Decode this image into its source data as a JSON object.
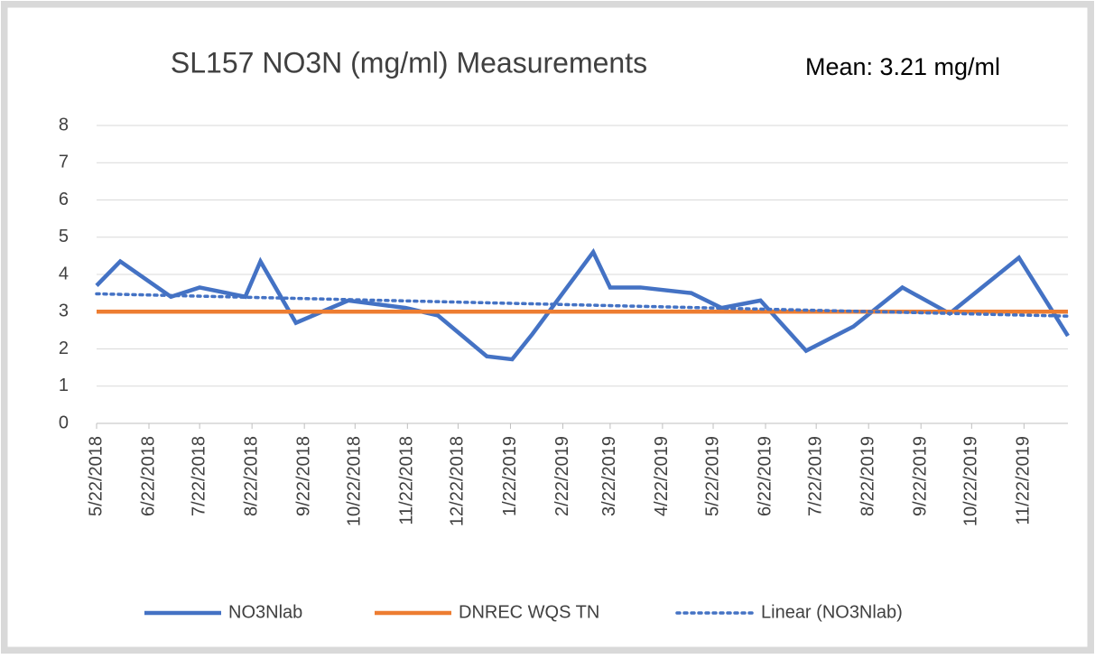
{
  "chart_data": {
    "type": "line",
    "title": "SL157 NO3N (mg/ml) Measurements",
    "annotation": "Mean: 3.21 mg/ml",
    "xlim": [
      "2018-05-22",
      "2019-12-18"
    ],
    "xticks": [
      {
        "value": "2018-05-22",
        "label": "5/22/2018"
      },
      {
        "value": "2018-06-22",
        "label": "6/22/2018"
      },
      {
        "value": "2018-07-22",
        "label": "7/22/2018"
      },
      {
        "value": "2018-08-22",
        "label": "8/22/2018"
      },
      {
        "value": "2018-09-22",
        "label": "9/22/2018"
      },
      {
        "value": "2018-10-22",
        "label": "10/22/2018"
      },
      {
        "value": "2018-11-22",
        "label": "11/22/2018"
      },
      {
        "value": "2018-12-22",
        "label": "12/22/2018"
      },
      {
        "value": "2019-01-22",
        "label": "1/22/2019"
      },
      {
        "value": "2019-02-22",
        "label": "2/22/2019"
      },
      {
        "value": "2019-03-22",
        "label": "3/22/2019"
      },
      {
        "value": "2019-04-22",
        "label": "4/22/2019"
      },
      {
        "value": "2019-05-22",
        "label": "5/22/2019"
      },
      {
        "value": "2019-06-22",
        "label": "6/22/2019"
      },
      {
        "value": "2019-07-22",
        "label": "7/22/2019"
      },
      {
        "value": "2019-08-22",
        "label": "8/22/2019"
      },
      {
        "value": "2019-09-22",
        "label": "9/22/2019"
      },
      {
        "value": "2019-10-22",
        "label": "10/22/2019"
      },
      {
        "value": "2019-11-22",
        "label": "11/22/2019"
      }
    ],
    "ylim": [
      0,
      8
    ],
    "yticks": [
      0,
      1,
      2,
      3,
      4,
      5,
      6,
      7,
      8
    ],
    "grid": true,
    "legend": "bottom",
    "series": [
      {
        "name": "NO3Nlab",
        "color": "#4472c4",
        "style": "solid",
        "x": [
          "2018-05-22",
          "2018-06-05",
          "2018-07-05",
          "2018-07-22",
          "2018-08-18",
          "2018-08-27",
          "2018-09-17",
          "2018-10-18",
          "2018-11-21",
          "2018-12-10",
          "2019-01-08",
          "2019-01-23",
          "2019-02-04",
          "2019-03-12",
          "2019-03-22",
          "2019-04-09",
          "2019-05-09",
          "2019-05-27",
          "2019-06-19",
          "2019-07-16",
          "2019-08-13",
          "2019-09-11",
          "2019-10-09",
          "2019-11-19",
          "2019-12-18"
        ],
        "values": [
          3.7,
          4.35,
          3.4,
          3.65,
          3.4,
          4.35,
          2.7,
          3.3,
          3.1,
          2.9,
          1.8,
          1.72,
          2.4,
          4.6,
          3.65,
          3.65,
          3.5,
          3.1,
          3.3,
          1.95,
          2.6,
          3.65,
          2.95,
          4.45,
          2.35
        ]
      },
      {
        "name": "DNREC WQS TN",
        "color": "#ed7d31",
        "style": "solid",
        "x": [
          "2018-05-22",
          "2019-12-18"
        ],
        "values": [
          3,
          3
        ]
      },
      {
        "name": "Linear (NO3Nlab)",
        "color": "#4472c4",
        "style": "dotted",
        "x": [
          "2018-05-22",
          "2019-12-18"
        ],
        "values": [
          3.48,
          2.88
        ]
      }
    ]
  }
}
